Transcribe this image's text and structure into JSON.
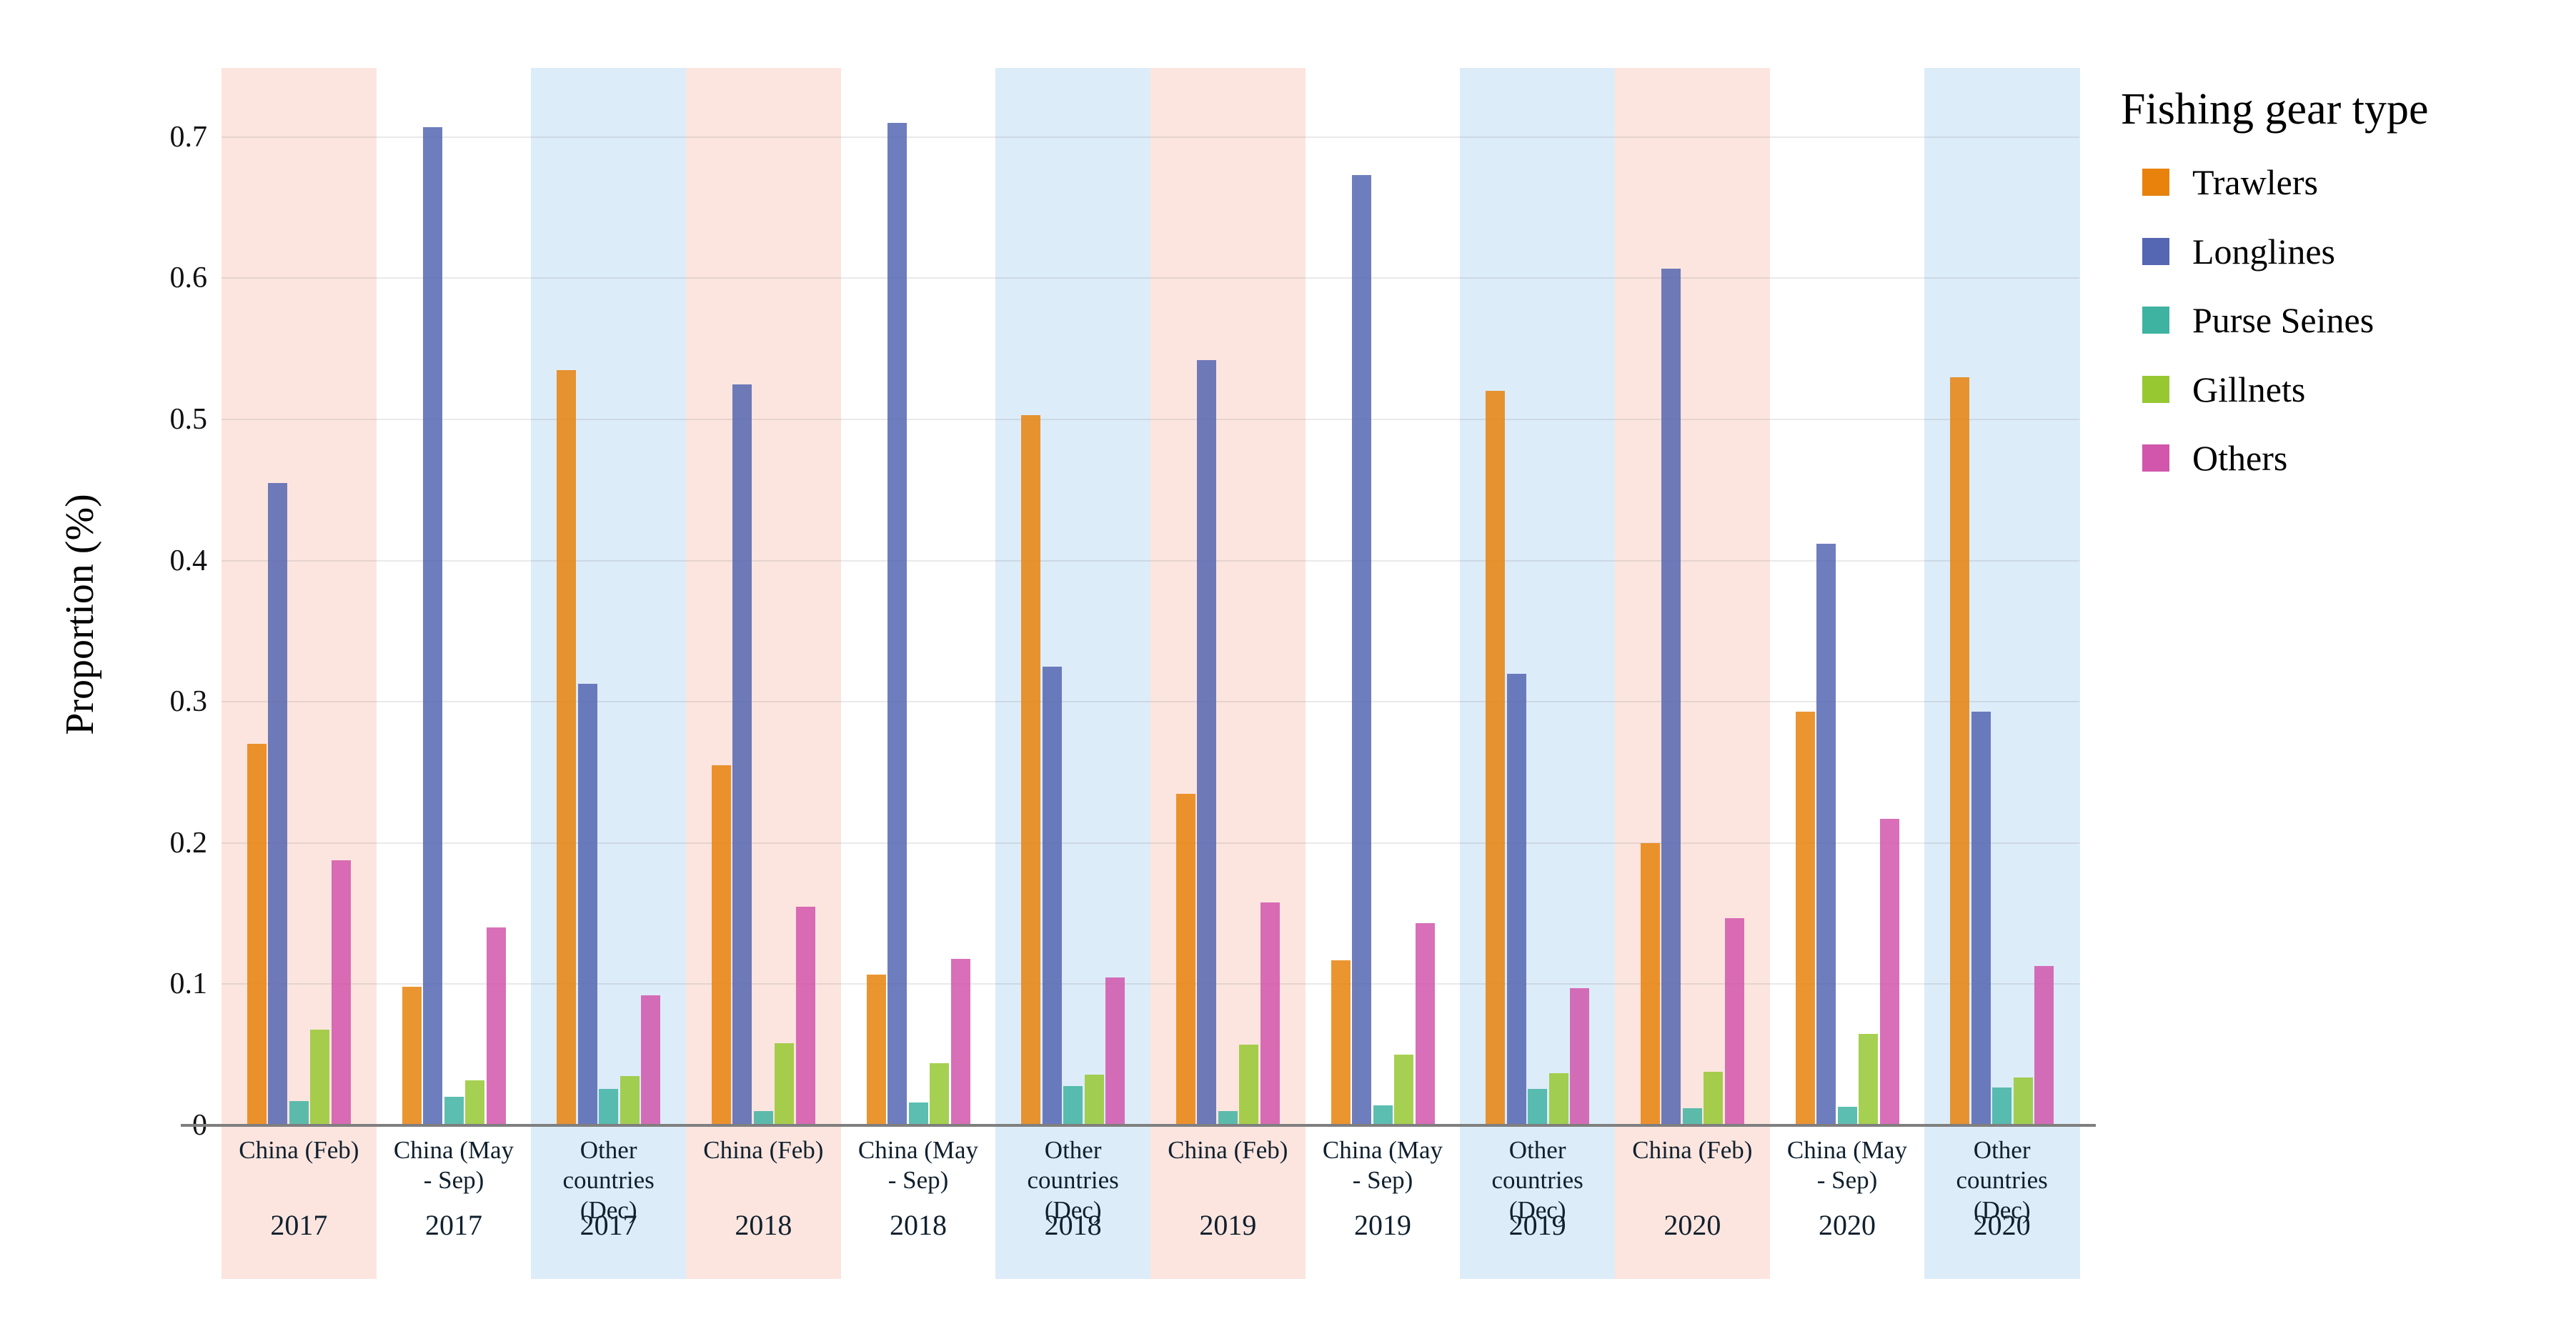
{
  "chart_data": {
    "type": "bar",
    "title": "",
    "ylabel": "Proportion (%)",
    "legend_title": "Fishing gear type",
    "legend_position": "right",
    "grid": true,
    "ylim": [
      0,
      0.748
    ],
    "yticks": [
      0,
      0.1,
      0.2,
      0.3,
      0.4,
      0.5,
      0.6,
      0.7
    ],
    "band_colors": {
      "china_feb": "#fce5df",
      "china_may_sep": "#ffffff",
      "other_dec": "#ddecf9"
    },
    "categories": [
      {
        "label_lines": [
          "China (Feb)"
        ],
        "year": "2017",
        "band": "china_feb"
      },
      {
        "label_lines": [
          "China  (May",
          "- Sep)"
        ],
        "year": "2017",
        "band": "china_may_sep"
      },
      {
        "label_lines": [
          "Other",
          "countries",
          "(Dec)"
        ],
        "year": "2017",
        "band": "other_dec"
      },
      {
        "label_lines": [
          "China (Feb)"
        ],
        "year": "2018",
        "band": "china_feb"
      },
      {
        "label_lines": [
          "China  (May",
          "- Sep)"
        ],
        "year": "2018",
        "band": "china_may_sep"
      },
      {
        "label_lines": [
          "Other",
          "countries",
          "(Dec)"
        ],
        "year": "2018",
        "band": "other_dec"
      },
      {
        "label_lines": [
          "China (Feb)"
        ],
        "year": "2019",
        "band": "china_feb"
      },
      {
        "label_lines": [
          "China  (May",
          "- Sep)"
        ],
        "year": "2019",
        "band": "china_may_sep"
      },
      {
        "label_lines": [
          "Other",
          "countries",
          "(Dec)"
        ],
        "year": "2019",
        "band": "other_dec"
      },
      {
        "label_lines": [
          "China (Feb)"
        ],
        "year": "2020",
        "band": "china_feb"
      },
      {
        "label_lines": [
          "China  (May",
          "- Sep)"
        ],
        "year": "2020",
        "band": "china_may_sep"
      },
      {
        "label_lines": [
          "Other",
          "countries",
          "(Dec)"
        ],
        "year": "2020",
        "band": "other_dec"
      }
    ],
    "series": [
      {
        "name": "Trawlers",
        "color": "#e8820d",
        "values": [
          0.27,
          0.098,
          0.535,
          0.255,
          0.107,
          0.503,
          0.235,
          0.117,
          0.52,
          0.2,
          0.293,
          0.53
        ]
      },
      {
        "name": "Longlines",
        "color": "#5566b2",
        "values": [
          0.455,
          0.707,
          0.313,
          0.525,
          0.71,
          0.325,
          0.542,
          0.673,
          0.32,
          0.607,
          0.412,
          0.293
        ]
      },
      {
        "name": "Purse Seines",
        "color": "#3fb3a2",
        "values": [
          0.017,
          0.02,
          0.026,
          0.01,
          0.016,
          0.028,
          0.01,
          0.014,
          0.026,
          0.012,
          0.013,
          0.027
        ]
      },
      {
        "name": "Gillnets",
        "color": "#97c832",
        "values": [
          0.068,
          0.032,
          0.035,
          0.058,
          0.044,
          0.036,
          0.057,
          0.05,
          0.037,
          0.038,
          0.065,
          0.034
        ]
      },
      {
        "name": "Others",
        "color": "#d156ac",
        "values": [
          0.188,
          0.14,
          0.092,
          0.155,
          0.118,
          0.105,
          0.158,
          0.143,
          0.097,
          0.147,
          0.217,
          0.113
        ]
      }
    ],
    "bar_opacity": 0.85
  }
}
